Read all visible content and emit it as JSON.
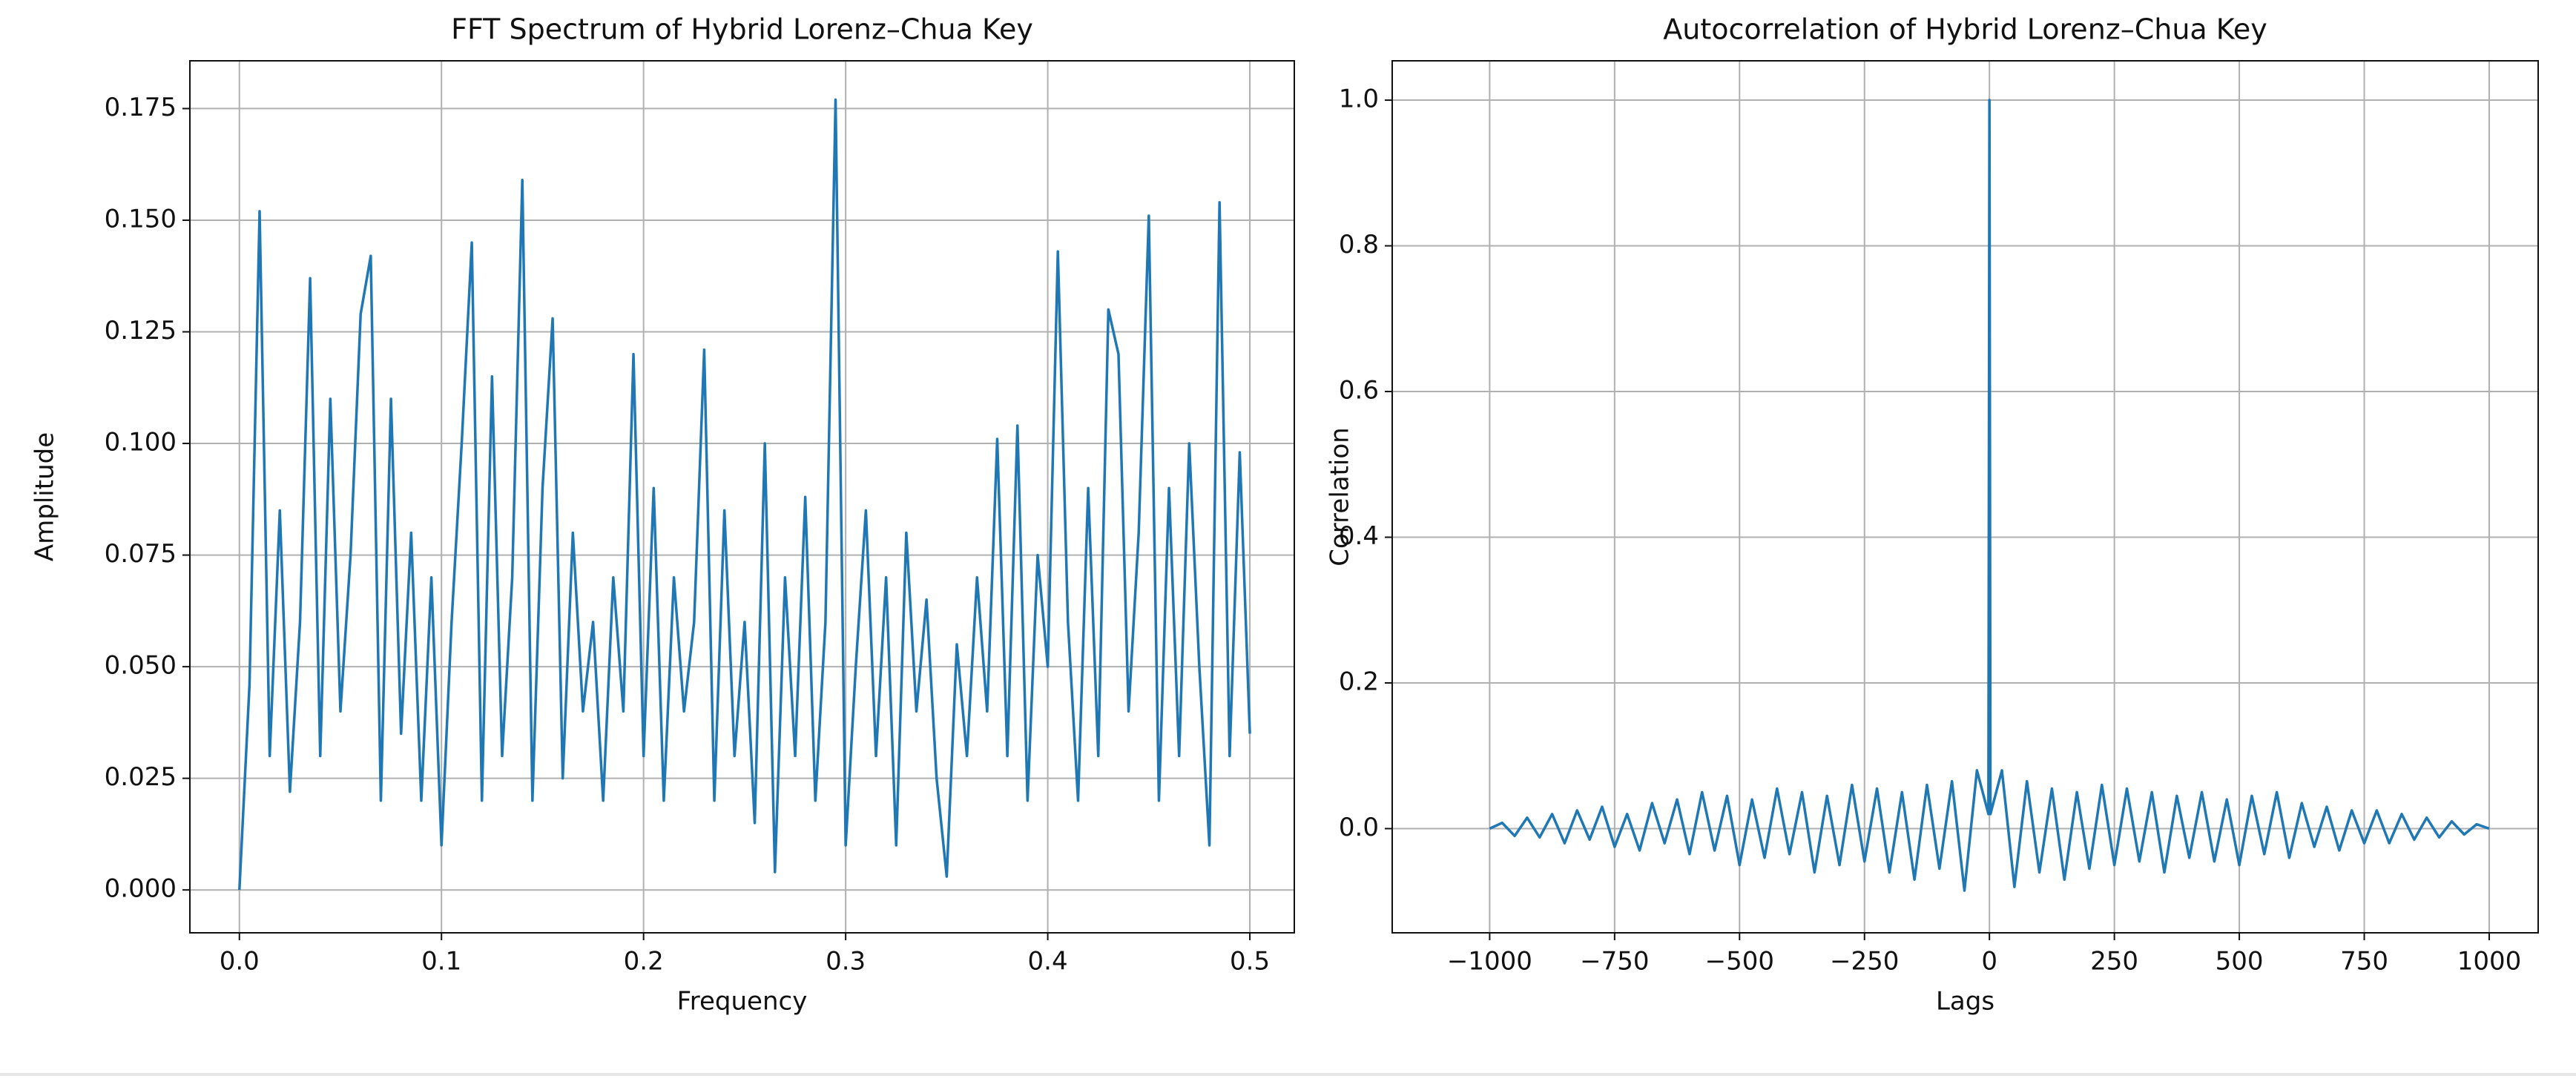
{
  "chart_data": [
    {
      "type": "line",
      "title": "FFT Spectrum of Hybrid Lorenz–Chua Key",
      "xlabel": "Frequency",
      "ylabel": "Amplitude",
      "grid": true,
      "xlim": [
        -0.0245,
        0.522
      ],
      "ylim": [
        -0.0096,
        0.1857
      ],
      "xticks": [
        {
          "value": 0,
          "label": "0.0"
        },
        0.1,
        0.2,
        0.3,
        0.4,
        0.5
      ],
      "yticks": [
        {
          "value": 0,
          "label": "0.000"
        },
        {
          "value": 0.025,
          "label": "0.025"
        },
        {
          "value": 0.05,
          "label": "0.050"
        },
        {
          "value": 0.075,
          "label": "0.075"
        },
        {
          "value": 0.1,
          "label": "0.100"
        },
        {
          "value": 0.125,
          "label": "0.125"
        },
        {
          "value": 0.15,
          "label": "0.150"
        },
        {
          "value": 0.175,
          "label": "0.175"
        }
      ],
      "x": [
        0,
        0.005,
        0.01,
        0.015,
        0.02,
        0.025,
        0.03,
        0.035,
        0.04,
        0.045,
        0.05,
        0.055,
        0.06,
        0.065,
        0.07,
        0.075,
        0.08,
        0.085,
        0.09,
        0.095,
        0.1,
        0.105,
        0.11,
        0.115,
        0.12,
        0.125,
        0.13,
        0.135,
        0.14,
        0.145,
        0.15,
        0.155,
        0.16,
        0.165,
        0.17,
        0.175,
        0.18,
        0.185,
        0.19,
        0.195,
        0.2,
        0.205,
        0.21,
        0.215,
        0.22,
        0.225,
        0.23,
        0.235,
        0.24,
        0.245,
        0.25,
        0.255,
        0.26,
        0.265,
        0.27,
        0.275,
        0.28,
        0.285,
        0.29,
        0.295,
        0.3,
        0.305,
        0.31,
        0.315,
        0.32,
        0.325,
        0.33,
        0.335,
        0.34,
        0.345,
        0.35,
        0.355,
        0.36,
        0.365,
        0.37,
        0.375,
        0.38,
        0.385,
        0.39,
        0.395,
        0.4,
        0.405,
        0.41,
        0.415,
        0.42,
        0.425,
        0.43,
        0.435,
        0.44,
        0.445,
        0.45,
        0.455,
        0.46,
        0.465,
        0.47,
        0.475,
        0.48,
        0.485,
        0.49,
        0.495,
        0.5
      ],
      "series": [
        {
          "color": "#1f77b4",
          "values": [
            0,
            0.046,
            0.152,
            0.03,
            0.085,
            0.022,
            0.06,
            0.137,
            0.03,
            0.11,
            0.04,
            0.075,
            0.129,
            0.142,
            0.02,
            0.11,
            0.035,
            0.08,
            0.02,
            0.07,
            0.01,
            0.06,
            0.1,
            0.145,
            0.02,
            0.115,
            0.03,
            0.07,
            0.159,
            0.02,
            0.09,
            0.128,
            0.025,
            0.08,
            0.04,
            0.06,
            0.02,
            0.07,
            0.04,
            0.12,
            0.03,
            0.09,
            0.02,
            0.07,
            0.04,
            0.06,
            0.121,
            0.02,
            0.085,
            0.03,
            0.06,
            0.015,
            0.1,
            0.004,
            0.07,
            0.03,
            0.088,
            0.02,
            0.06,
            0.177,
            0.01,
            0.05,
            0.085,
            0.03,
            0.07,
            0.01,
            0.08,
            0.04,
            0.065,
            0.025,
            0.003,
            0.055,
            0.03,
            0.07,
            0.04,
            0.101,
            0.03,
            0.104,
            0.02,
            0.075,
            0.05,
            0.143,
            0.06,
            0.02,
            0.09,
            0.03,
            0.13,
            0.12,
            0.04,
            0.08,
            0.151,
            0.02,
            0.09,
            0.03,
            0.1,
            0.05,
            0.01,
            0.154,
            0.03,
            0.098,
            0.035
          ]
        }
      ]
    },
    {
      "type": "line",
      "title": "Autocorrelation of Hybrid Lorenz–Chua Key",
      "xlabel": "Lags",
      "ylabel": "Correlation",
      "grid": true,
      "xlim": [
        -1195,
        1098
      ],
      "ylim": [
        -0.143,
        1.054
      ],
      "xticks": [
        {
          "value": -1000,
          "label": "−1000"
        },
        {
          "value": -750,
          "label": "−750"
        },
        {
          "value": -500,
          "label": "−500"
        },
        {
          "value": -250,
          "label": "−250"
        },
        0,
        250,
        500,
        750,
        1000
      ],
      "yticks": [
        {
          "value": 0,
          "label": "0.0"
        },
        0.2,
        0.4,
        0.6,
        0.8,
        {
          "value": 1,
          "label": "1.0"
        }
      ],
      "x": [
        -1000,
        -975,
        -950,
        -925,
        -900,
        -875,
        -850,
        -825,
        -800,
        -775,
        -750,
        -725,
        -700,
        -675,
        -650,
        -625,
        -600,
        -575,
        -550,
        -525,
        -500,
        -475,
        -450,
        -425,
        -400,
        -375,
        -350,
        -325,
        -300,
        -275,
        -250,
        -225,
        -200,
        -175,
        -150,
        -125,
        -100,
        -75,
        -50,
        -25,
        -2,
        0,
        2,
        25,
        50,
        75,
        100,
        125,
        150,
        175,
        200,
        225,
        250,
        275,
        300,
        325,
        350,
        375,
        400,
        425,
        450,
        475,
        500,
        525,
        550,
        575,
        600,
        625,
        650,
        675,
        700,
        725,
        750,
        775,
        800,
        825,
        850,
        875,
        900,
        925,
        950,
        975,
        1000
      ],
      "series": [
        {
          "color": "#1f77b4",
          "values": [
            0,
            0.008,
            -0.01,
            0.015,
            -0.012,
            0.02,
            -0.02,
            0.025,
            -0.015,
            0.03,
            -0.025,
            0.02,
            -0.03,
            0.035,
            -0.02,
            0.04,
            -0.035,
            0.05,
            -0.03,
            0.045,
            -0.05,
            0.04,
            -0.04,
            0.055,
            -0.035,
            0.05,
            -0.06,
            0.045,
            -0.05,
            0.06,
            -0.045,
            0.055,
            -0.06,
            0.05,
            -0.07,
            0.06,
            -0.055,
            0.065,
            -0.085,
            0.08,
            0.02,
            1.0,
            0.02,
            0.08,
            -0.08,
            0.065,
            -0.06,
            0.055,
            -0.07,
            0.05,
            -0.055,
            0.06,
            -0.05,
            0.055,
            -0.045,
            0.05,
            -0.06,
            0.045,
            -0.04,
            0.05,
            -0.045,
            0.04,
            -0.05,
            0.045,
            -0.035,
            0.05,
            -0.04,
            0.035,
            -0.025,
            0.03,
            -0.03,
            0.025,
            -0.02,
            0.025,
            -0.02,
            0.02,
            -0.015,
            0.015,
            -0.012,
            0.01,
            -0.008,
            0.006,
            0
          ]
        }
      ]
    }
  ]
}
